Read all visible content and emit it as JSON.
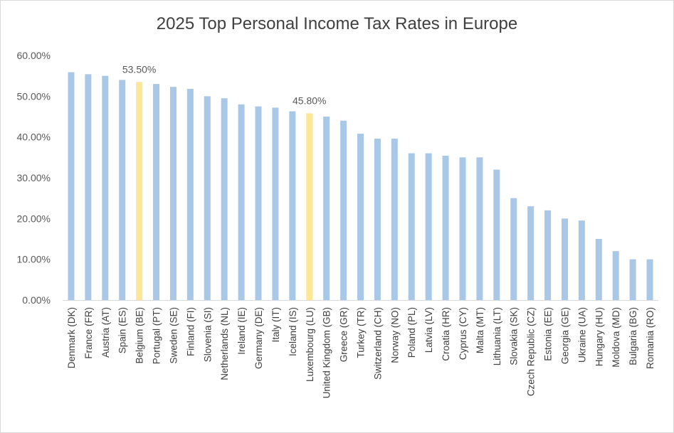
{
  "chart_data": {
    "type": "bar",
    "title": "2025 Top Personal Income Tax Rates in Europe",
    "xlabel": "",
    "ylabel": "",
    "ylim": [
      0,
      60
    ],
    "yticks": [
      "0.00%",
      "10.00%",
      "20.00%",
      "30.00%",
      "40.00%",
      "50.00%",
      "60.00%"
    ],
    "grid": false,
    "categories": [
      "Denmark (DK)",
      "France (FR)",
      "Austria (AT)",
      "Spain (ES)",
      "Belgium (BE)",
      "Portugal (PT)",
      "Sweden (SE)",
      "Finland (FI)",
      "Slovenia (SI)",
      "Netherlands (NL)",
      "Ireland (IE)",
      "Germany (DE)",
      "Italy (IT)",
      "Iceland (IS)",
      "Luxembourg (LU)",
      "United Kingdom (GB)",
      "Greece (GR)",
      "Turkey (TR)",
      "Switzerland (CH)",
      "Norway (NO)",
      "Poland (PL)",
      "Latvia (LV)",
      "Croatia (HR)",
      "Cyprus (CY)",
      "Malta (MT)",
      "Lithuania (LT)",
      "Slovakia (SK)",
      "Czech Republic (CZ)",
      "Estonia (EE)",
      "Georgia (GE)",
      "Ukraine (UA)",
      "Hungary (HU)",
      "Moldova (MD)",
      "Bulgaria (BG)",
      "Romania (RO)"
    ],
    "values": [
      55.9,
      55.4,
      55.0,
      54.0,
      53.5,
      53.0,
      52.3,
      51.8,
      50.0,
      49.5,
      48.0,
      47.5,
      47.2,
      46.3,
      45.8,
      45.0,
      44.0,
      40.8,
      39.6,
      39.6,
      36.0,
      36.0,
      35.4,
      35.0,
      35.0,
      32.0,
      25.0,
      23.0,
      22.0,
      20.0,
      19.5,
      15.0,
      12.0,
      10.0,
      10.0
    ],
    "highlighted": [
      "Belgium (BE)",
      "Luxembourg (LU)"
    ],
    "data_labels": [
      {
        "category": "Belgium (BE)",
        "text": "53.50%"
      },
      {
        "category": "Luxembourg (LU)",
        "text": "45.80%"
      }
    ],
    "colors": {
      "bar": "#a9c8e8",
      "highlight": "#ffe699"
    }
  }
}
